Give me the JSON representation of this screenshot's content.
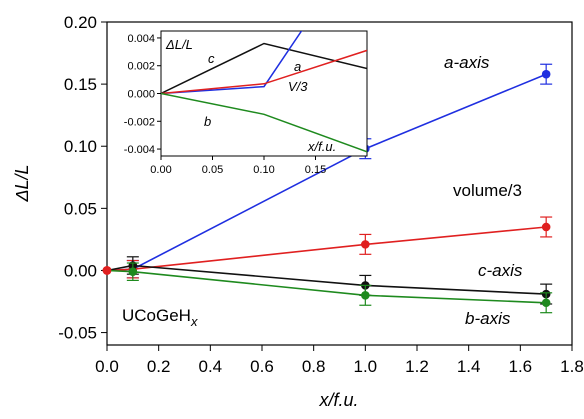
{
  "chart_data": [
    {
      "type": "line",
      "xlabel": "x/f.u.",
      "ylabel": "ΔL/L",
      "xlim": [
        0.0,
        1.8
      ],
      "ylim": [
        -0.06,
        0.2
      ],
      "xticks": [
        "0.0",
        "0.2",
        "0.4",
        "0.6",
        "0.8",
        "1.0",
        "1.2",
        "1.4",
        "1.6",
        "1.8"
      ],
      "yticks": [
        "-0.05",
        "0.00",
        "0.05",
        "0.10",
        "0.15",
        "0.20"
      ],
      "grid": false,
      "annotation": "UCoGeHx",
      "series": [
        {
          "name": "a-axis",
          "color": "#1f2fe0",
          "x": [
            0,
            0.1,
            1.0,
            1.7
          ],
          "y": [
            0.0,
            0.001,
            0.098,
            0.158
          ],
          "yerr": [
            0,
            0.007,
            0.008,
            0.008
          ]
        },
        {
          "name": "volume/3",
          "color": "#e02020",
          "x": [
            0,
            0.1,
            1.0,
            1.7
          ],
          "y": [
            0.0,
            0.001,
            0.021,
            0.035
          ],
          "yerr": [
            0,
            0.007,
            0.008,
            0.008
          ]
        },
        {
          "name": "c-axis",
          "color": "#111111",
          "x": [
            0,
            0.1,
            1.0,
            1.7
          ],
          "y": [
            0.0,
            0.004,
            -0.012,
            -0.019
          ],
          "yerr": [
            0,
            0.007,
            0.008,
            0.008
          ]
        },
        {
          "name": "b-axis",
          "color": "#1e8a1e",
          "x": [
            0,
            0.1,
            1.0,
            1.7
          ],
          "y": [
            0.0,
            -0.001,
            -0.02,
            -0.026
          ],
          "yerr": [
            0,
            0.007,
            0.008,
            0.008
          ]
        }
      ]
    },
    {
      "type": "line",
      "xlabel": "x/f.u.",
      "ylabel": "ΔL/L",
      "xlim": [
        0.0,
        0.2
      ],
      "ylim": [
        -0.0045,
        0.0045
      ],
      "xticks": [
        "0.00",
        "0.05",
        "0.10",
        "0.15"
      ],
      "yticks": [
        "-0.004",
        "-0.002",
        "0.000",
        "0.002",
        "0.004"
      ],
      "series": [
        {
          "name": "c",
          "color": "#111111",
          "x": [
            0,
            0.1,
            0.2
          ],
          "y": [
            0.0,
            0.0036,
            0.0018
          ]
        },
        {
          "name": "a",
          "color": "#1f2fe0",
          "x": [
            0,
            0.1,
            0.2
          ],
          "y": [
            0.0,
            0.0005,
            0.0115
          ]
        },
        {
          "name": "V/3",
          "color": "#e02020",
          "x": [
            0,
            0.1,
            0.2
          ],
          "y": [
            0.0,
            0.0007,
            0.0031
          ]
        },
        {
          "name": "b",
          "color": "#1e8a1e",
          "x": [
            0,
            0.1,
            0.2
          ],
          "y": [
            0.0,
            -0.0015,
            -0.0042
          ]
        }
      ]
    }
  ]
}
